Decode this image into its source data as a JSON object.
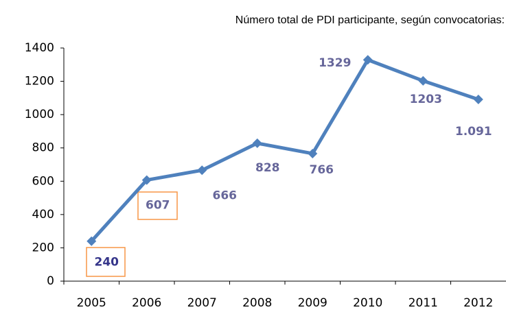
{
  "chart_data": {
    "type": "line",
    "title": "Número total de PDI participante, según convocatorias:",
    "categories": [
      "2005",
      "2006",
      "2007",
      "2008",
      "2009",
      "2010",
      "2011",
      "2012"
    ],
    "series": [
      {
        "name": "PDI participante",
        "color": "#4f81bd",
        "values": [
          240,
          607,
          666,
          828,
          766,
          1329,
          1203,
          1091
        ],
        "value_labels": [
          "240",
          "607",
          "666",
          "828",
          "766",
          "1329",
          "1203",
          "1.091"
        ]
      }
    ],
    "ylim": [
      0,
      1400
    ],
    "yticks": [
      0,
      200,
      400,
      600,
      800,
      1000,
      1200,
      1400
    ],
    "grid": false
  }
}
